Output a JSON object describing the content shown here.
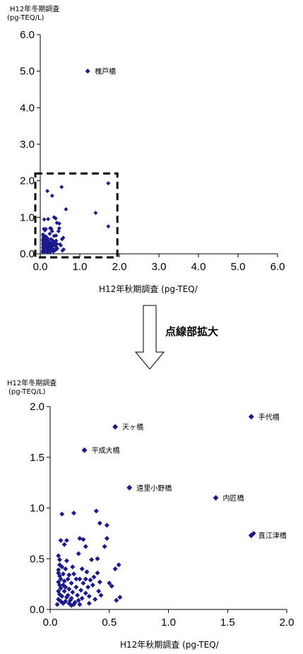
{
  "chart_data": [
    {
      "type": "scatter",
      "title": "",
      "ylabel_lines": [
        "H12年冬期調査",
        "(pg-TEQ/L)"
      ],
      "xlabel": "H12年秋期調査  (pg-TEQ/",
      "xlim": [
        0,
        6
      ],
      "ylim": [
        0,
        6
      ],
      "xticks": [
        "0.0",
        "1.0",
        "2.0",
        "3.0",
        "4.0",
        "5.0",
        "6.0"
      ],
      "yticks": [
        "0.0",
        "1.0",
        "2.0",
        "3.0",
        "4.0",
        "5.0",
        "6.0"
      ],
      "zoom_box": {
        "x": [
          0,
          1.95
        ],
        "y": [
          0,
          2.2
        ]
      },
      "labeled_points": [
        {
          "name": "槐戸橋",
          "x": 1.2,
          "y": 5.0
        }
      ]
    },
    {
      "type": "scatter",
      "title": "",
      "ylabel_lines": [
        "H12年冬期調査",
        "(pg-TEQ/L)"
      ],
      "xlabel": "H12年秋期調査  (pg-TEQ/",
      "xlim": [
        0,
        2
      ],
      "ylim": [
        0,
        2
      ],
      "xticks": [
        "0.0",
        "0.5",
        "1.0",
        "1.5",
        "2.0"
      ],
      "yticks": [
        "0.0",
        "0.5",
        "1.0",
        "1.5",
        "2.0"
      ],
      "labeled_points": [
        {
          "name": "手代橋",
          "x": 1.7,
          "y": 1.9
        },
        {
          "name": "天ヶ橋",
          "x": 0.55,
          "y": 1.8
        },
        {
          "name": "平成大橋",
          "x": 0.29,
          "y": 1.57
        },
        {
          "name": "遠里小野橋",
          "x": 0.67,
          "y": 1.2
        },
        {
          "name": "内匠橋",
          "x": 1.4,
          "y": 1.1
        },
        {
          "name": "直江津橋",
          "x": 1.7,
          "y": 0.73
        }
      ]
    }
  ],
  "points": [
    [
      0.07,
      0.53
    ],
    [
      0.08,
      0.49
    ],
    [
      0.08,
      0.44
    ],
    [
      0.07,
      0.39
    ],
    [
      0.07,
      0.36
    ],
    [
      0.08,
      0.33
    ],
    [
      0.09,
      0.3
    ],
    [
      0.07,
      0.27
    ],
    [
      0.08,
      0.24
    ],
    [
      0.09,
      0.21
    ],
    [
      0.07,
      0.18
    ],
    [
      0.08,
      0.15
    ],
    [
      0.1,
      0.13
    ],
    [
      0.07,
      0.1
    ],
    [
      0.09,
      0.08
    ],
    [
      0.11,
      0.06
    ],
    [
      0.06,
      0.05
    ],
    [
      0.12,
      0.28
    ],
    [
      0.11,
      0.35
    ],
    [
      0.13,
      0.22
    ],
    [
      0.12,
      0.18
    ],
    [
      0.14,
      0.12
    ],
    [
      0.1,
      0.42
    ],
    [
      0.13,
      0.4
    ],
    [
      0.09,
      0.68
    ],
    [
      0.12,
      0.64
    ],
    [
      0.1,
      0.94
    ],
    [
      0.14,
      0.68
    ],
    [
      0.15,
      0.3
    ],
    [
      0.16,
      0.2
    ],
    [
      0.15,
      0.14
    ],
    [
      0.17,
      0.09
    ],
    [
      0.16,
      0.06
    ],
    [
      0.18,
      0.26
    ],
    [
      0.19,
      0.17
    ],
    [
      0.18,
      0.11
    ],
    [
      0.2,
      0.35
    ],
    [
      0.21,
      0.07
    ],
    [
      0.22,
      0.22
    ],
    [
      0.23,
      0.14
    ],
    [
      0.24,
      0.55
    ],
    [
      0.24,
      0.09
    ],
    [
      0.25,
      0.3
    ],
    [
      0.26,
      0.19
    ],
    [
      0.27,
      0.11
    ],
    [
      0.28,
      0.69
    ],
    [
      0.28,
      0.26
    ],
    [
      0.3,
      0.62
    ],
    [
      0.3,
      0.16
    ],
    [
      0.31,
      0.37
    ],
    [
      0.32,
      0.22
    ],
    [
      0.33,
      0.13
    ],
    [
      0.34,
      0.29
    ],
    [
      0.35,
      0.49
    ],
    [
      0.36,
      0.24
    ],
    [
      0.37,
      0.32
    ],
    [
      0.38,
      0.1
    ],
    [
      0.39,
      0.97
    ],
    [
      0.4,
      0.36
    ],
    [
      0.41,
      0.18
    ],
    [
      0.43,
      0.14
    ],
    [
      0.46,
      0.62
    ],
    [
      0.48,
      0.83
    ],
    [
      0.5,
      0.26
    ],
    [
      0.52,
      0.23
    ],
    [
      0.56,
      0.09
    ],
    [
      0.58,
      0.44
    ],
    [
      0.59,
      0.12
    ],
    [
      0.2,
      0.05
    ],
    [
      0.25,
      0.05
    ],
    [
      0.14,
      0.48
    ],
    [
      0.19,
      0.42
    ],
    [
      0.11,
      0.24
    ],
    [
      0.16,
      0.34
    ],
    [
      0.22,
      0.3
    ],
    [
      0.13,
      0.08
    ],
    [
      0.18,
      0.04
    ],
    [
      0.27,
      0.4
    ],
    [
      0.33,
      0.06
    ],
    [
      0.42,
      0.27
    ]
  ],
  "big_points_only": [
    [
      0.18,
      1.72
    ],
    [
      0.3,
      1.59
    ],
    [
      0.54,
      1.83
    ],
    [
      0.65,
      1.22
    ],
    [
      1.4,
      1.12
    ],
    [
      1.72,
      1.93
    ],
    [
      1.72,
      0.75
    ],
    [
      0.2,
      0.95
    ],
    [
      0.35,
      1.0
    ],
    [
      0.42,
      0.85
    ],
    [
      0.48,
      0.7
    ],
    [
      0.4,
      0.5
    ],
    [
      0.25,
      0.7
    ],
    [
      0.55,
      0.4
    ],
    [
      0.3,
      0.3
    ]
  ],
  "annotation": {
    "arrow_label": "点線部拡大"
  }
}
